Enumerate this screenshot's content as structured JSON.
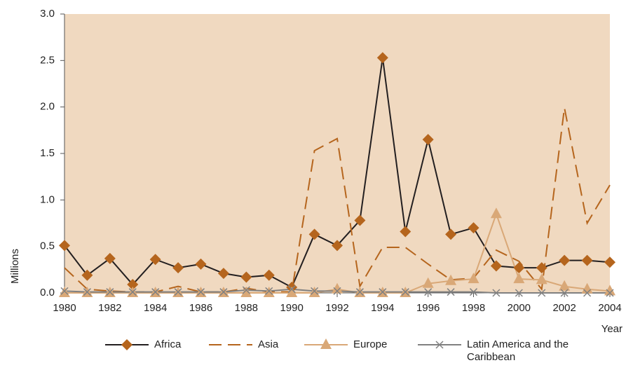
{
  "chart_data": {
    "type": "line",
    "y_label": "Millions",
    "x_label": "Year",
    "x": [
      1980,
      1981,
      1982,
      1983,
      1984,
      1985,
      1986,
      1987,
      1988,
      1989,
      1990,
      1991,
      1992,
      1993,
      1994,
      1995,
      1996,
      1997,
      1998,
      1999,
      2000,
      2001,
      2002,
      2003,
      2004
    ],
    "xlim": [
      1980,
      2004
    ],
    "xticks": [
      1980,
      1982,
      1984,
      1986,
      1988,
      1990,
      1992,
      1994,
      1996,
      1998,
      2000,
      2002,
      2004
    ],
    "ylim": [
      0,
      3
    ],
    "yticks": [
      {
        "value": 0,
        "label": "0.0"
      },
      0.5,
      {
        "value": 1,
        "label": "1.0"
      },
      1.5,
      {
        "value": 2,
        "label": "2.0"
      },
      2.5,
      {
        "value": 3,
        "label": "3.0"
      }
    ],
    "background": "#f0d9c0",
    "series": [
      {
        "name": "Africa",
        "color": "#231f20",
        "marker_color": "#b5651d",
        "marker": "diamond",
        "dash": "none",
        "values": [
          0.51,
          0.19,
          0.37,
          0.09,
          0.36,
          0.27,
          0.31,
          0.21,
          0.17,
          0.19,
          0.06,
          0.63,
          0.51,
          0.78,
          2.53,
          0.66,
          1.65,
          0.63,
          0.7,
          0.29,
          0.27,
          0.27,
          0.35,
          0.35,
          0.33
        ]
      },
      {
        "name": "Asia",
        "color": "#b5651d",
        "marker": "none",
        "dash": "18 9",
        "values": [
          0.27,
          0.04,
          0.02,
          0.01,
          0.01,
          0.07,
          0.01,
          0.01,
          0.05,
          0.01,
          0.01,
          1.53,
          1.66,
          0.07,
          0.49,
          0.49,
          0.31,
          0.14,
          0.16,
          0.46,
          0.34,
          0.04,
          1.99,
          0.75,
          1.16
        ]
      },
      {
        "name": "Europe",
        "color": "#d9a877",
        "marker_color": "#d9a877",
        "marker": "triangle",
        "dash": "none",
        "values": [
          0,
          0,
          0,
          0,
          0,
          0,
          0,
          0,
          0,
          0,
          0,
          0,
          0.04,
          0,
          0,
          0,
          0.1,
          0.13,
          0.15,
          0.85,
          0.15,
          0.14,
          0.07,
          0.04,
          0.02
        ]
      },
      {
        "name": "Latin America and the Caribbean",
        "color": "#808080",
        "marker_color": "#808080",
        "marker": "x",
        "dash": "none",
        "values": [
          0.02,
          0.01,
          0.01,
          0.01,
          0.01,
          0.01,
          0.01,
          0.01,
          0.03,
          0.02,
          0.04,
          0.02,
          0.02,
          0.01,
          0.01,
          0.01,
          0.01,
          0.01,
          0.01,
          0,
          0,
          0,
          0,
          0,
          0
        ]
      }
    ]
  }
}
